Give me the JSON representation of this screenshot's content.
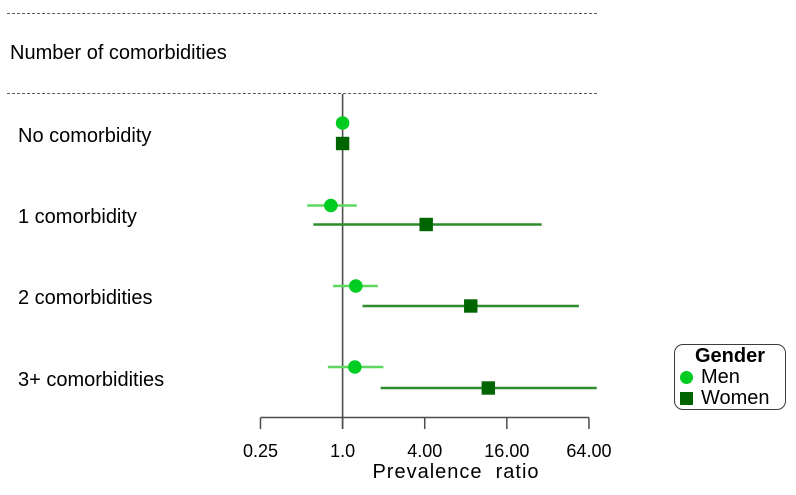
{
  "section": {
    "title": "Number of comorbidities"
  },
  "legend": {
    "title": "Gender",
    "items": [
      "Men",
      "Women"
    ]
  },
  "chart_data": {
    "type": "scatter",
    "subtype": "forest-plot",
    "title": "Number of comorbidities",
    "xlabel": "Prevalence  ratio",
    "x_scale": "log2",
    "xlim": [
      0.25,
      75
    ],
    "grid": false,
    "reference_line_x": 1.0,
    "categories": [
      "No comorbidity",
      "1 comorbidity",
      "2 comorbidities",
      "3+ comorbidities"
    ],
    "x_ticks": [
      {
        "value": 0.25,
        "label": "0.25"
      },
      {
        "value": 1,
        "label": "1.0"
      },
      {
        "value": 4,
        "label": "4.00"
      },
      {
        "value": 16,
        "label": "16.00"
      },
      {
        "value": 64,
        "label": "64.00"
      }
    ],
    "legend_position": "right",
    "series": [
      {
        "name": "Men",
        "marker": "circle",
        "color": "#00CC22",
        "line_color": "#5DD75D",
        "values": [
          {
            "category": "No comorbidity",
            "est": 1.0,
            "lo": 1.0,
            "hi": 1.0
          },
          {
            "category": "1 comorbidity",
            "est": 0.82,
            "lo": 0.55,
            "hi": 1.27
          },
          {
            "category": "2 comorbidities",
            "est": 1.25,
            "lo": 0.85,
            "hi": 1.81
          },
          {
            "category": "3+ comorbidities",
            "est": 1.23,
            "lo": 0.78,
            "hi": 1.99
          }
        ]
      },
      {
        "name": "Women",
        "marker": "square",
        "color": "#006400",
        "line_color": "#2E8B2E",
        "values": [
          {
            "category": "No comorbidity",
            "est": 1.0,
            "lo": 1.0,
            "hi": 1.0
          },
          {
            "category": "1 comorbidity",
            "est": 4.1,
            "lo": 0.61,
            "hi": 28.8
          },
          {
            "category": "2 comorbidities",
            "est": 8.7,
            "lo": 1.4,
            "hi": 54.0
          },
          {
            "category": "3+ comorbidities",
            "est": 11.7,
            "lo": 1.9,
            "hi": 73.0
          }
        ]
      }
    ],
    "axis_color": "#4d4d4d",
    "dashed_rule_color": "#595959"
  }
}
